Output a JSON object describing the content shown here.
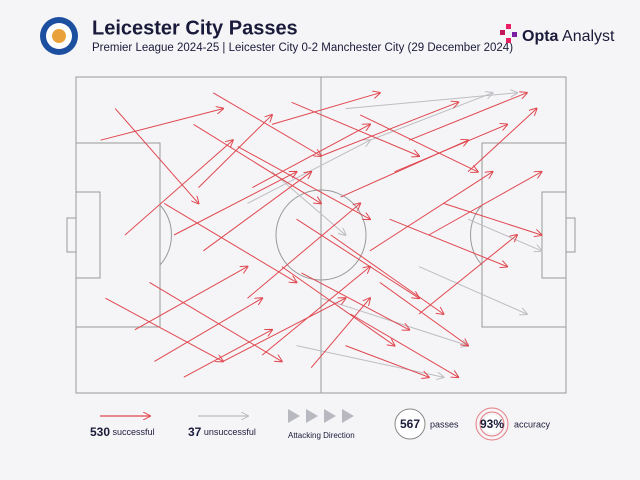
{
  "chart_data": {
    "type": "pass-map",
    "title": "Leicester City Passes",
    "subtitle": "Premier League 2024-25 | Leicester City 0-2 Manchester City (29 December 2024)",
    "brand_bold": "Opta",
    "brand": "Analyst",
    "successful": 530,
    "successful_label": "successful",
    "unsuccessful": 37,
    "unsuccessful_label": "unsuccessful",
    "direction_label": "Attacking Direction",
    "passes": 567,
    "passes_label": "passes",
    "accuracy": {
      "value": 93,
      "label": "93%"
    },
    "accuracy_label": "accuracy",
    "xlim": [
      0,
      100
    ],
    "ylim": [
      0,
      100
    ],
    "series": [
      {
        "name": "successful",
        "color": "#e0474f",
        "x1": [
          5,
          12,
          20,
          8,
          30,
          25,
          15,
          40,
          35,
          45,
          22,
          50,
          55,
          60,
          18,
          28,
          42,
          65,
          70,
          48,
          10,
          33,
          58,
          75,
          62,
          38,
          52,
          68,
          26,
          44,
          80,
          72,
          16,
          56,
          36,
          46,
          64,
          24,
          6,
          54
        ],
        "y1": [
          20,
          80,
          50,
          10,
          90,
          35,
          65,
          15,
          70,
          45,
          95,
          25,
          85,
          55,
          40,
          5,
          60,
          30,
          75,
          92,
          50,
          22,
          12,
          40,
          65,
          88,
          50,
          20,
          55,
          8,
          30,
          50,
          90,
          75,
          35,
          62,
          45,
          15,
          70,
          38
        ],
        "x2": [
          30,
          35,
          45,
          25,
          55,
          40,
          42,
          62,
          58,
          70,
          40,
          78,
          72,
          85,
          45,
          50,
          65,
          88,
          90,
          60,
          32,
          60,
          82,
          95,
          80,
          60,
          75,
          92,
          48,
          70,
          94,
          95,
          38,
          78,
          60,
          68,
          88,
          50,
          30,
          80
        ],
        "y2": [
          10,
          60,
          30,
          40,
          70,
          12,
          90,
          5,
          40,
          70,
          80,
          8,
          95,
          30,
          65,
          25,
          85,
          15,
          50,
          70,
          20,
          45,
          30,
          50,
          85,
          60,
          75,
          5,
          30,
          25,
          10,
          30,
          70,
          95,
          15,
          80,
          60,
          40,
          90,
          20
        ]
      },
      {
        "name": "unsuccessful",
        "color": "#bdbdc2",
        "x1": [
          35,
          50,
          60,
          70,
          45,
          80,
          55,
          40
        ],
        "y1": [
          40,
          70,
          20,
          60,
          85,
          45,
          10,
          30
        ],
        "x2": [
          60,
          80,
          85,
          92,
          75,
          95,
          90,
          55
        ],
        "y2": [
          20,
          85,
          5,
          75,
          95,
          55,
          5,
          50
        ]
      }
    ]
  }
}
